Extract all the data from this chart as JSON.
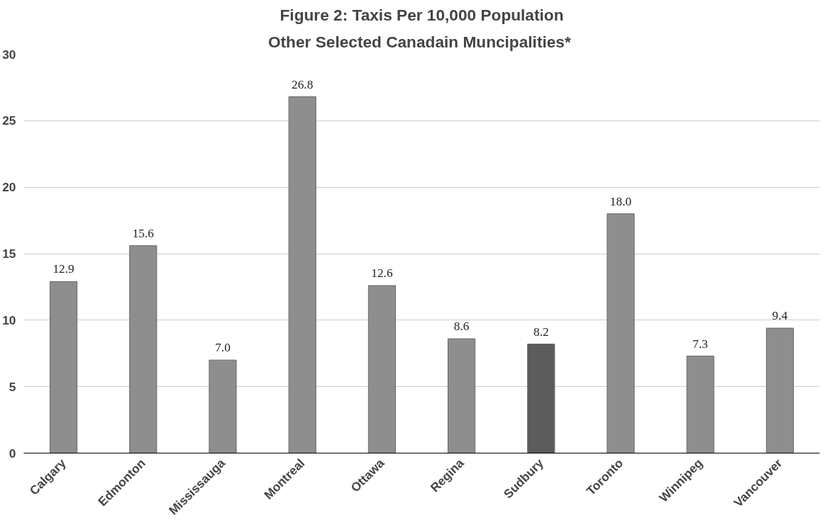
{
  "chart_data": {
    "type": "bar",
    "title": "Figure 2: Taxis Per 10,000 Population",
    "subtitle": "Other Selected Canadain  Muncipalities*",
    "categories": [
      "Calgary",
      "Edmonton",
      "Mississauga",
      "Montreal",
      "Ottawa",
      "Regina",
      "Sudbury",
      "Toronto",
      "Winnipeg",
      "Vancouver"
    ],
    "values": [
      12.9,
      15.6,
      7.0,
      26.8,
      12.6,
      8.6,
      8.2,
      18.0,
      7.3,
      9.4
    ],
    "value_labels": [
      "12.9",
      "15.6",
      "7.0",
      "26.8",
      "12.6",
      "8.6",
      "8.2",
      "18.0",
      "7.3",
      "9.4"
    ],
    "colors": [
      "#8e8e8e",
      "#8e8e8e",
      "#8e8e8e",
      "#8e8e8e",
      "#8e8e8e",
      "#8e8e8e",
      "#5c5c5c",
      "#8e8e8e",
      "#8e8e8e",
      "#8e8e8e"
    ],
    "ylim": [
      0,
      30
    ],
    "yticks": [
      0,
      5,
      10,
      15,
      20,
      25,
      30
    ],
    "grid": "y"
  }
}
